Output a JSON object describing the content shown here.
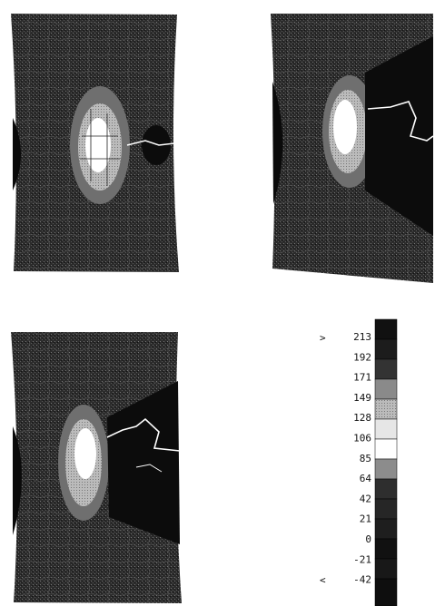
{
  "legend": {
    "over_marker": ">",
    "under_marker": "<",
    "labels": [
      213,
      192,
      171,
      149,
      128,
      106,
      85,
      64,
      42,
      21,
      0,
      -21,
      -42
    ]
  }
}
